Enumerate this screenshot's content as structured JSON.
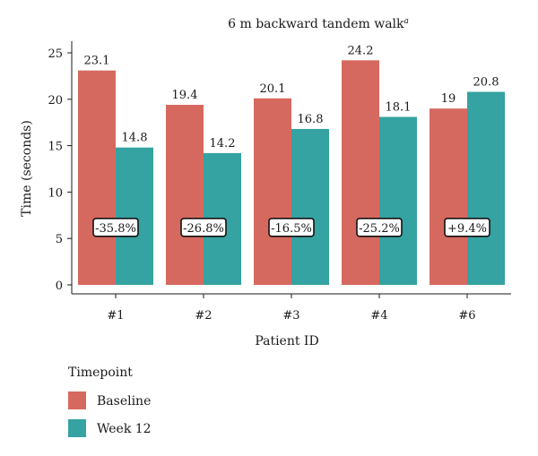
{
  "chart_data": {
    "type": "bar",
    "title": "6 m backward tandem walk",
    "title_superscript": "a",
    "xlabel": "Patient ID",
    "ylabel": "Time (seconds)",
    "ylim": [
      0,
      25
    ],
    "yticks": [
      0,
      5,
      10,
      15,
      20,
      25
    ],
    "grid": false,
    "categories": [
      "#1",
      "#2",
      "#3",
      "#4",
      "#6"
    ],
    "series": [
      {
        "name": "Baseline",
        "values": [
          23.1,
          19.4,
          20.1,
          24.2,
          19
        ],
        "labels": [
          "23.1",
          "19.4",
          "20.1",
          "24.2",
          "19"
        ],
        "color": "#d6695f"
      },
      {
        "name": "Week 12",
        "values": [
          14.8,
          14.2,
          16.8,
          18.1,
          20.8
        ],
        "labels": [
          "14.8",
          "14.2",
          "16.8",
          "18.1",
          "20.8"
        ],
        "color": "#34a3a1"
      }
    ],
    "percent_change": [
      "-35.8%",
      "-26.8%",
      "-16.5%",
      "-25.2%",
      "+9.4%"
    ],
    "percent_change_y": 6.2,
    "legend": {
      "title": "Timepoint",
      "placement": "bottom-left"
    }
  }
}
